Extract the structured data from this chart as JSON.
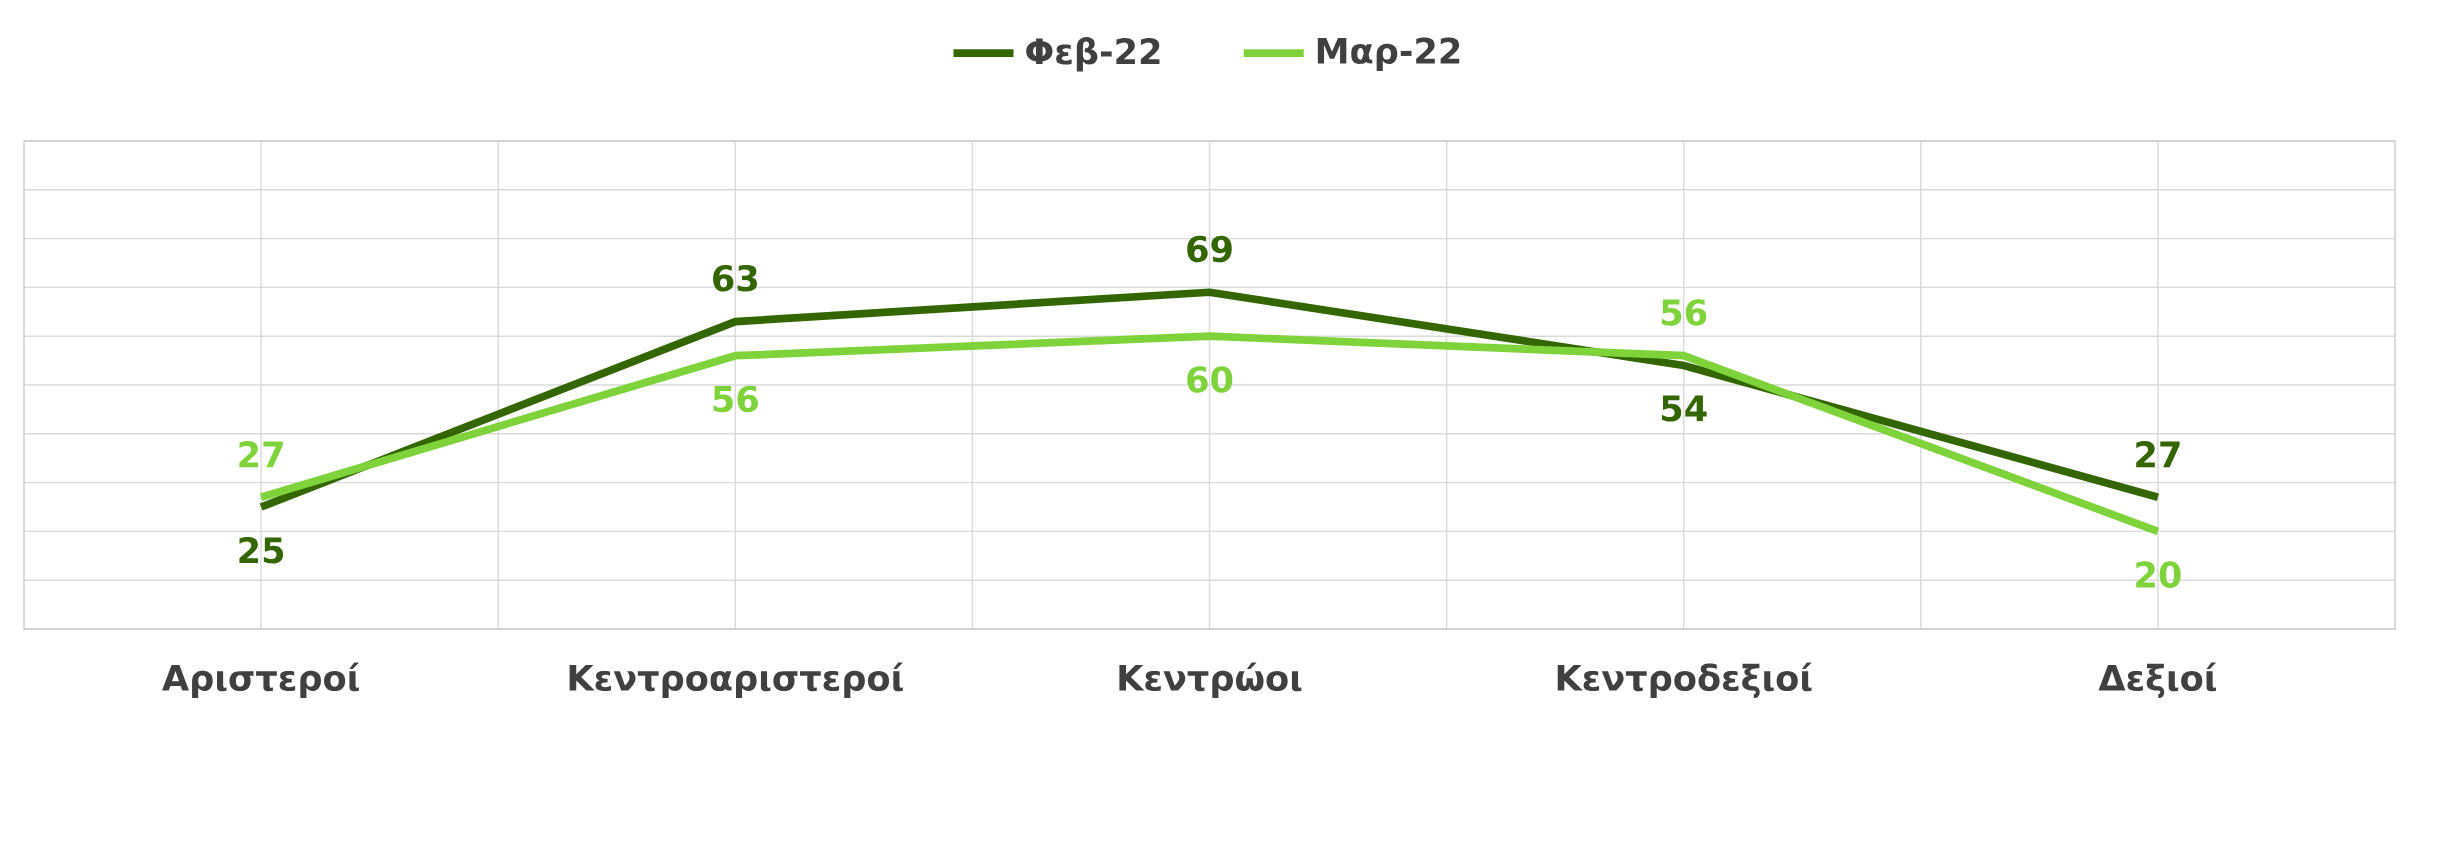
{
  "chart_data": {
    "type": "line",
    "categories": [
      "Αριστεροί",
      "Κεντροαριστεροί",
      "Κεντρώοι",
      "Κεντροδεξιοί",
      "Δεξιοί"
    ],
    "series": [
      {
        "name": "Φεβ-22",
        "color": "#336600",
        "values": [
          25,
          63,
          69,
          54,
          27
        ]
      },
      {
        "name": "Μαρ-22",
        "color": "#7ed23a",
        "values": [
          27,
          56,
          60,
          56,
          20
        ]
      }
    ],
    "ylim": [
      0,
      100
    ],
    "yticks": [
      {
        "value": 0,
        "label": null
      },
      {
        "value": 10,
        "label": null
      },
      {
        "value": 20,
        "label": null
      },
      {
        "value": 30,
        "label": null
      },
      {
        "value": 40,
        "label": null
      },
      {
        "value": 50,
        "label": null
      },
      {
        "value": 60,
        "label": null
      },
      {
        "value": 70,
        "label": null
      },
      {
        "value": 80,
        "label": null
      },
      {
        "value": 90,
        "label": null
      },
      {
        "value": 100,
        "label": null
      }
    ],
    "tick_labels": "x",
    "grid": true,
    "legend": "top",
    "data_labels": true,
    "marker": "none",
    "line_style": "solid"
  }
}
